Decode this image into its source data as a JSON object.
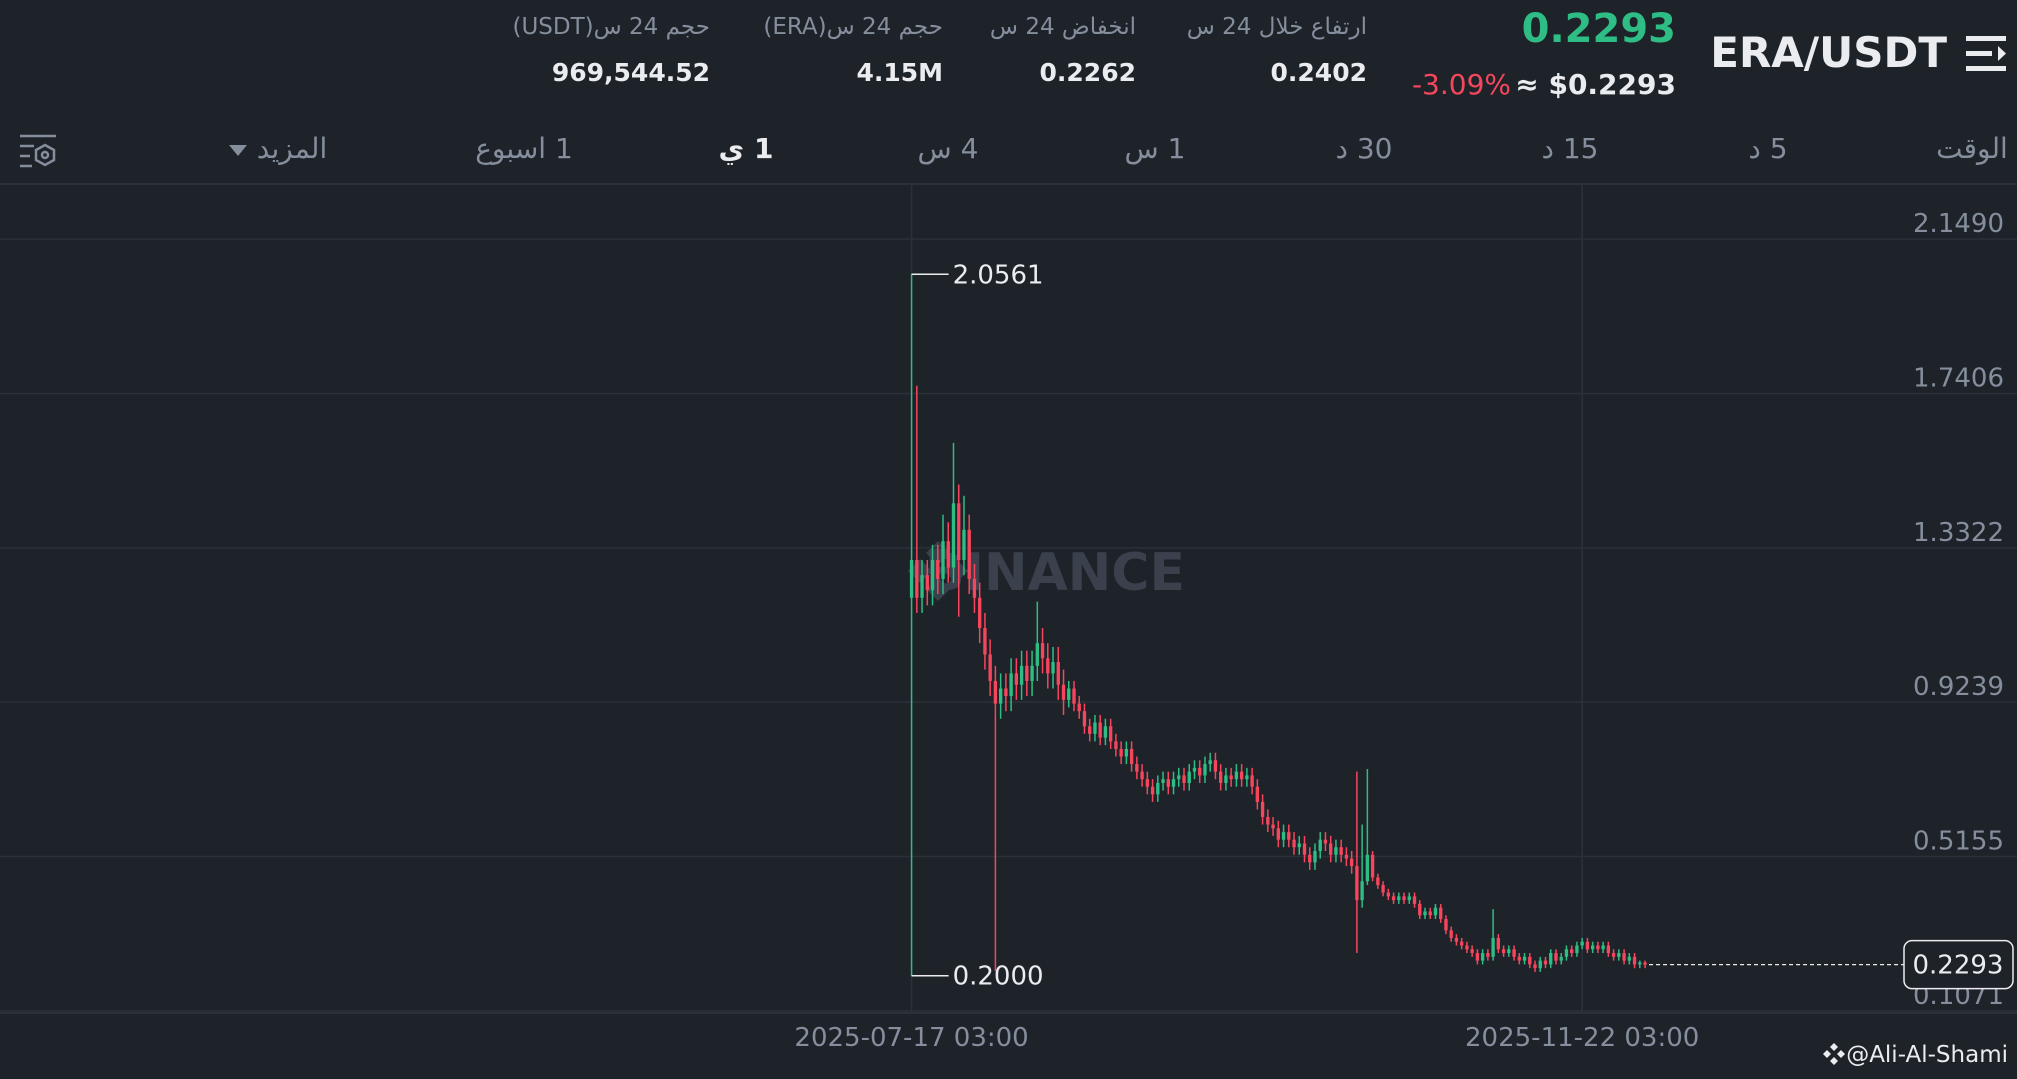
{
  "header": {
    "symbol": "ERA/USDT",
    "price": "0.2293",
    "price_usd": "≈ $0.2293",
    "change": "-3.09%",
    "stats": [
      {
        "label": "ارتفاع خلال 24 س",
        "value": "0.2402"
      },
      {
        "label": "انخفاض 24 س",
        "value": "0.2262"
      },
      {
        "label": "حجم 24 س(ERA)",
        "value": "4.15M"
      },
      {
        "label": "حجم 24 س(USDT)",
        "value": "969,544.52"
      }
    ]
  },
  "tabs": [
    "الوقت",
    "5 د",
    "15 د",
    "30 د",
    "1 س",
    "4 س",
    "1 ي",
    "1 اسبوع",
    "المزيد"
  ],
  "active_tab": "1 ي",
  "watermark": "BINANCE",
  "credit": "@Ali-Al-Shami",
  "chart_data": {
    "type": "candlestick",
    "up_color": "#2ebd85",
    "down_color": "#f6465d",
    "grid": true,
    "xlim": [
      "2025-01-24 03:00",
      "2026-02-13 03:00"
    ],
    "xticks": [
      "2025-07-17 03:00",
      "2025-11-22 03:00"
    ],
    "ylim": [
      0.104,
      2.295
    ],
    "yticks": [
      {
        "value": 2.149,
        "label": "2.1490"
      },
      1.7406,
      1.3322,
      0.9239,
      0.5155,
      0.1071
    ],
    "extremes": [
      {
        "value": 2.0561,
        "label": "2.0561"
      },
      {
        "value": 0.2,
        "label": "0.2000"
      }
    ],
    "last_price": 0.2293,
    "x": [
      "2025-07-17 03:00",
      "2025-07-18 03:00",
      "2025-07-19 03:00",
      "2025-07-20 03:00",
      "2025-07-21 03:00",
      "2025-07-22 03:00",
      "2025-07-23 03:00",
      "2025-07-24 03:00",
      "2025-07-25 03:00",
      "2025-07-26 03:00",
      "2025-07-27 03:00",
      "2025-07-28 03:00",
      "2025-07-29 03:00",
      "2025-07-30 03:00",
      "2025-07-31 03:00",
      "2025-08-01 03:00",
      "2025-08-02 03:00",
      "2025-08-03 03:00",
      "2025-08-04 03:00",
      "2025-08-05 03:00",
      "2025-08-06 03:00",
      "2025-08-07 03:00",
      "2025-08-08 03:00",
      "2025-08-09 03:00",
      "2025-08-10 03:00",
      "2025-08-11 03:00",
      "2025-08-12 03:00",
      "2025-08-13 03:00",
      "2025-08-14 03:00",
      "2025-08-15 03:00",
      "2025-08-16 03:00",
      "2025-08-17 03:00",
      "2025-08-18 03:00",
      "2025-08-19 03:00",
      "2025-08-20 03:00",
      "2025-08-21 03:00",
      "2025-08-22 03:00",
      "2025-08-23 03:00",
      "2025-08-24 03:00",
      "2025-08-25 03:00",
      "2025-08-26 03:00",
      "2025-08-27 03:00",
      "2025-08-28 03:00",
      "2025-08-29 03:00",
      "2025-08-30 03:00",
      "2025-08-31 03:00",
      "2025-09-01 03:00",
      "2025-09-02 03:00",
      "2025-09-03 03:00",
      "2025-09-04 03:00",
      "2025-09-05 03:00",
      "2025-09-06 03:00",
      "2025-09-07 03:00",
      "2025-09-08 03:00",
      "2025-09-09 03:00",
      "2025-09-10 03:00",
      "2025-09-11 03:00",
      "2025-09-12 03:00",
      "2025-09-13 03:00",
      "2025-09-14 03:00",
      "2025-09-15 03:00",
      "2025-09-16 03:00",
      "2025-09-17 03:00",
      "2025-09-18 03:00",
      "2025-09-19 03:00",
      "2025-09-20 03:00",
      "2025-09-21 03:00",
      "2025-09-22 03:00",
      "2025-09-23 03:00",
      "2025-09-24 03:00",
      "2025-09-25 03:00",
      "2025-09-26 03:00",
      "2025-09-27 03:00",
      "2025-09-28 03:00",
      "2025-09-29 03:00",
      "2025-09-30 03:00",
      "2025-10-01 03:00",
      "2025-10-02 03:00",
      "2025-10-03 03:00",
      "2025-10-04 03:00",
      "2025-10-05 03:00",
      "2025-10-06 03:00",
      "2025-10-07 03:00",
      "2025-10-08 03:00",
      "2025-10-09 03:00",
      "2025-10-10 03:00",
      "2025-10-11 03:00",
      "2025-10-12 03:00",
      "2025-10-13 03:00",
      "2025-10-14 03:00",
      "2025-10-15 03:00",
      "2025-10-16 03:00",
      "2025-10-17 03:00",
      "2025-10-18 03:00",
      "2025-10-19 03:00",
      "2025-10-20 03:00",
      "2025-10-21 03:00",
      "2025-10-22 03:00",
      "2025-10-23 03:00",
      "2025-10-24 03:00",
      "2025-10-25 03:00",
      "2025-10-26 03:00",
      "2025-10-27 03:00",
      "2025-10-28 03:00",
      "2025-10-29 03:00",
      "2025-10-30 03:00",
      "2025-10-31 03:00",
      "2025-11-01 03:00",
      "2025-11-02 03:00",
      "2025-11-03 03:00",
      "2025-11-04 03:00",
      "2025-11-05 03:00",
      "2025-11-06 03:00",
      "2025-11-07 03:00",
      "2025-11-08 03:00",
      "2025-11-09 03:00",
      "2025-11-10 03:00",
      "2025-11-11 03:00",
      "2025-11-12 03:00",
      "2025-11-13 03:00",
      "2025-11-14 03:00",
      "2025-11-15 03:00",
      "2025-11-16 03:00",
      "2025-11-17 03:00",
      "2025-11-18 03:00",
      "2025-11-19 03:00",
      "2025-11-20 03:00",
      "2025-11-21 03:00",
      "2025-11-22 03:00",
      "2025-11-23 03:00",
      "2025-11-24 03:00",
      "2025-11-25 03:00",
      "2025-11-26 03:00",
      "2025-11-27 03:00",
      "2025-11-28 03:00",
      "2025-11-29 03:00",
      "2025-11-30 03:00",
      "2025-12-01 03:00",
      "2025-12-02 03:00",
      "2025-12-03 03:00",
      "2025-12-04 03:00"
    ],
    "open": [
      1.2,
      1.3,
      1.2,
      1.26,
      1.22,
      1.3,
      1.25,
      1.35,
      1.28,
      1.45,
      1.3,
      1.38,
      1.25,
      1.2,
      1.12,
      1.05,
      0.98,
      0.92,
      0.96,
      0.94,
      1.0,
      0.97,
      1.02,
      0.98,
      1.02,
      1.08,
      1.04,
      1.0,
      1.03,
      0.97,
      0.93,
      0.96,
      0.92,
      0.9,
      0.86,
      0.84,
      0.87,
      0.83,
      0.86,
      0.82,
      0.8,
      0.78,
      0.8,
      0.76,
      0.74,
      0.72,
      0.7,
      0.68,
      0.71,
      0.72,
      0.7,
      0.72,
      0.73,
      0.71,
      0.74,
      0.75,
      0.73,
      0.76,
      0.77,
      0.74,
      0.71,
      0.73,
      0.72,
      0.74,
      0.72,
      0.73,
      0.7,
      0.66,
      0.62,
      0.6,
      0.59,
      0.56,
      0.58,
      0.56,
      0.54,
      0.55,
      0.52,
      0.5,
      0.53,
      0.56,
      0.55,
      0.52,
      0.54,
      0.52,
      0.51,
      0.49,
      0.4,
      0.45,
      0.52,
      0.46,
      0.44,
      0.42,
      0.41,
      0.4,
      0.41,
      0.4,
      0.41,
      0.39,
      0.36,
      0.37,
      0.36,
      0.38,
      0.35,
      0.32,
      0.3,
      0.29,
      0.28,
      0.27,
      0.26,
      0.24,
      0.26,
      0.25,
      0.3,
      0.27,
      0.26,
      0.27,
      0.25,
      0.24,
      0.25,
      0.23,
      0.22,
      0.24,
      0.23,
      0.26,
      0.24,
      0.25,
      0.27,
      0.26,
      0.28,
      0.29,
      0.27,
      0.28,
      0.27,
      0.28,
      0.26,
      0.25,
      0.26,
      0.24,
      0.25,
      0.23,
      0.235
    ],
    "high": [
      2.0561,
      1.761,
      1.3,
      1.3,
      1.34,
      1.34,
      1.42,
      1.4,
      1.61,
      1.5,
      1.47,
      1.42,
      1.29,
      1.24,
      1.16,
      1.09,
      1.02,
      1.0,
      1.0,
      1.04,
      1.04,
      1.06,
      1.06,
      1.06,
      1.19,
      1.12,
      1.08,
      1.07,
      1.07,
      1.01,
      0.98,
      0.98,
      0.94,
      0.92,
      0.88,
      0.89,
      0.89,
      0.88,
      0.88,
      0.84,
      0.82,
      0.82,
      0.82,
      0.78,
      0.76,
      0.74,
      0.72,
      0.73,
      0.74,
      0.74,
      0.74,
      0.75,
      0.75,
      0.76,
      0.77,
      0.77,
      0.78,
      0.79,
      0.79,
      0.76,
      0.75,
      0.75,
      0.76,
      0.76,
      0.75,
      0.75,
      0.72,
      0.68,
      0.64,
      0.62,
      0.61,
      0.6,
      0.6,
      0.58,
      0.57,
      0.57,
      0.54,
      0.55,
      0.58,
      0.58,
      0.57,
      0.56,
      0.56,
      0.54,
      0.53,
      0.74,
      0.6,
      0.747,
      0.53,
      0.47,
      0.45,
      0.43,
      0.42,
      0.42,
      0.42,
      0.42,
      0.42,
      0.4,
      0.38,
      0.38,
      0.39,
      0.39,
      0.36,
      0.33,
      0.31,
      0.3,
      0.29,
      0.28,
      0.27,
      0.27,
      0.27,
      0.376,
      0.31,
      0.28,
      0.28,
      0.28,
      0.26,
      0.26,
      0.26,
      0.24,
      0.25,
      0.25,
      0.27,
      0.27,
      0.26,
      0.28,
      0.28,
      0.29,
      0.3,
      0.3,
      0.29,
      0.29,
      0.29,
      0.29,
      0.27,
      0.27,
      0.27,
      0.26,
      0.26,
      0.24,
      0.24
    ],
    "low": [
      0.2,
      1.16,
      1.16,
      1.18,
      1.18,
      1.21,
      1.21,
      1.24,
      1.24,
      1.15,
      1.26,
      1.21,
      1.16,
      1.08,
      1.01,
      0.94,
      0.212,
      0.88,
      0.9,
      0.9,
      0.93,
      0.93,
      0.94,
      0.94,
      0.98,
      1.0,
      0.96,
      0.96,
      0.93,
      0.89,
      0.91,
      0.9,
      0.88,
      0.84,
      0.82,
      0.82,
      0.81,
      0.81,
      0.8,
      0.78,
      0.76,
      0.76,
      0.74,
      0.72,
      0.7,
      0.68,
      0.66,
      0.66,
      0.69,
      0.68,
      0.68,
      0.7,
      0.69,
      0.69,
      0.72,
      0.71,
      0.71,
      0.74,
      0.72,
      0.69,
      0.69,
      0.7,
      0.7,
      0.7,
      0.7,
      0.68,
      0.64,
      0.6,
      0.58,
      0.57,
      0.54,
      0.54,
      0.54,
      0.52,
      0.52,
      0.5,
      0.48,
      0.48,
      0.51,
      0.53,
      0.5,
      0.5,
      0.5,
      0.49,
      0.47,
      0.26,
      0.38,
      0.44,
      0.45,
      0.43,
      0.41,
      0.4,
      0.39,
      0.39,
      0.39,
      0.39,
      0.38,
      0.35,
      0.35,
      0.35,
      0.35,
      0.34,
      0.31,
      0.29,
      0.28,
      0.27,
      0.26,
      0.25,
      0.23,
      0.23,
      0.24,
      0.24,
      0.26,
      0.25,
      0.25,
      0.24,
      0.23,
      0.23,
      0.22,
      0.21,
      0.21,
      0.22,
      0.22,
      0.23,
      0.23,
      0.24,
      0.25,
      0.25,
      0.27,
      0.26,
      0.26,
      0.26,
      0.26,
      0.25,
      0.24,
      0.24,
      0.23,
      0.23,
      0.22,
      0.22,
      0.22
    ],
    "close": [
      1.3,
      1.2,
      1.26,
      1.22,
      1.3,
      1.25,
      1.35,
      1.28,
      1.45,
      1.3,
      1.38,
      1.25,
      1.2,
      1.12,
      1.05,
      0.98,
      0.92,
      0.96,
      0.94,
      1.0,
      0.97,
      1.02,
      0.98,
      1.02,
      1.08,
      1.04,
      1.0,
      1.03,
      0.97,
      0.93,
      0.96,
      0.92,
      0.9,
      0.86,
      0.84,
      0.87,
      0.83,
      0.86,
      0.82,
      0.8,
      0.78,
      0.8,
      0.76,
      0.74,
      0.72,
      0.7,
      0.68,
      0.71,
      0.72,
      0.7,
      0.72,
      0.73,
      0.71,
      0.74,
      0.75,
      0.73,
      0.76,
      0.77,
      0.74,
      0.71,
      0.73,
      0.72,
      0.74,
      0.72,
      0.73,
      0.7,
      0.66,
      0.62,
      0.6,
      0.59,
      0.56,
      0.58,
      0.56,
      0.54,
      0.55,
      0.52,
      0.5,
      0.53,
      0.56,
      0.55,
      0.52,
      0.54,
      0.52,
      0.51,
      0.49,
      0.4,
      0.45,
      0.52,
      0.46,
      0.44,
      0.42,
      0.41,
      0.4,
      0.41,
      0.4,
      0.41,
      0.39,
      0.36,
      0.37,
      0.36,
      0.38,
      0.35,
      0.32,
      0.3,
      0.29,
      0.28,
      0.27,
      0.26,
      0.24,
      0.26,
      0.25,
      0.3,
      0.27,
      0.26,
      0.27,
      0.25,
      0.24,
      0.25,
      0.23,
      0.22,
      0.24,
      0.23,
      0.26,
      0.24,
      0.25,
      0.27,
      0.26,
      0.28,
      0.29,
      0.27,
      0.28,
      0.27,
      0.28,
      0.26,
      0.25,
      0.26,
      0.24,
      0.25,
      0.23,
      0.235,
      0.2293
    ]
  }
}
